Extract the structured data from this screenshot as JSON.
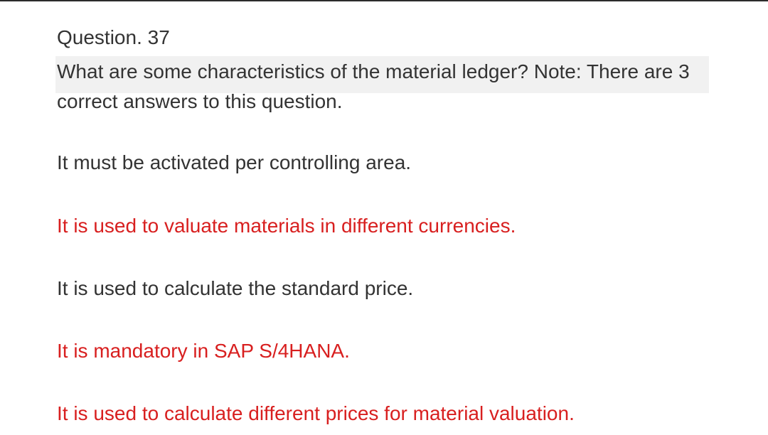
{
  "question": {
    "number_label": "Question. 37",
    "text": "What are some characteristics of the material ledger? Note: There are 3 correct answers to this question."
  },
  "options": [
    {
      "text": "It must be activated per controlling area.",
      "correct": false
    },
    {
      "text": "It is used to valuate materials in different currencies.",
      "correct": true
    },
    {
      "text": "It is used to calculate the standard price.",
      "correct": false
    },
    {
      "text": "It is mandatory in SAP S/4HANA.",
      "correct": true
    },
    {
      "text": "It is used to calculate different prices for material valuation.",
      "correct": true
    }
  ],
  "colors": {
    "text": "#333333",
    "correct_answer": "#d81f1f",
    "highlight": "#f1f1f1"
  }
}
